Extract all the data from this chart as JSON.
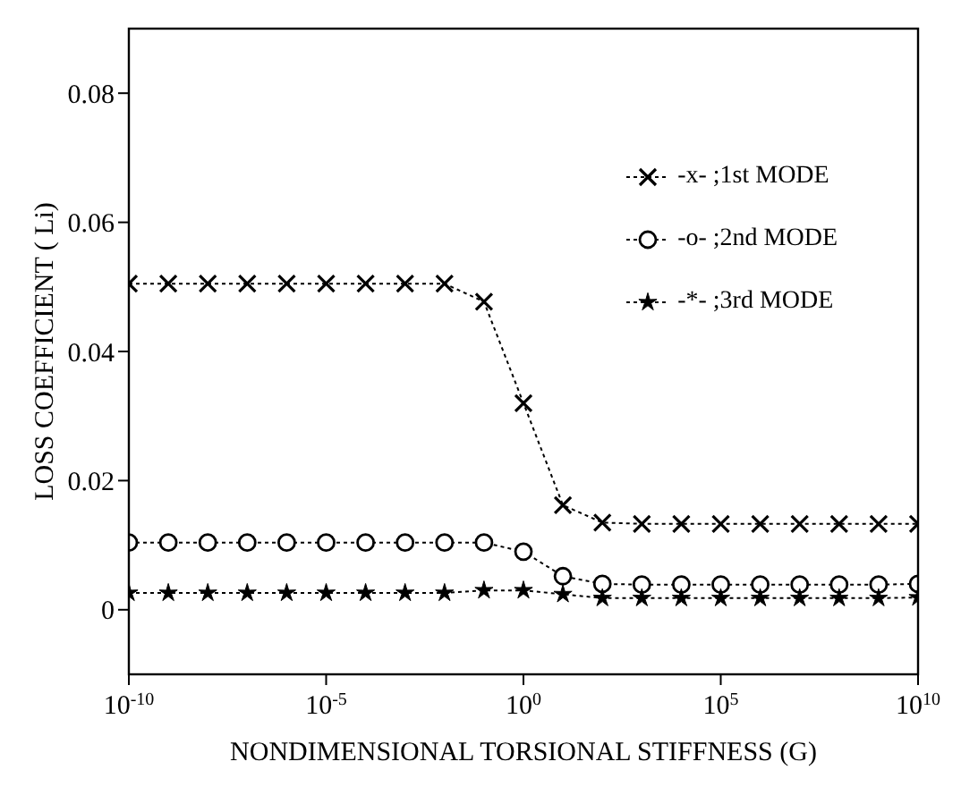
{
  "chart_data": {
    "type": "line",
    "xlabel": "NONDIMENSIONAL TORSIONAL STIFFNESS (G)",
    "ylabel": "LOSS COEFFICIENT ( Li)",
    "x": [
      1e-10,
      1e-09,
      1e-08,
      1e-07,
      1e-06,
      1e-05,
      0.0001,
      0.001,
      0.01,
      0.1,
      1,
      10,
      100,
      1000,
      10000,
      100000,
      1000000,
      10000000,
      100000000,
      1000000000,
      10000000000
    ],
    "series": [
      {
        "name": "-x- ;1st MODE",
        "color": "#000000",
        "marker": "cross",
        "values": [
          0.0505,
          0.0505,
          0.0505,
          0.0505,
          0.0505,
          0.0505,
          0.0505,
          0.0505,
          0.0505,
          0.0477,
          0.032,
          0.0162,
          0.0135,
          0.0133,
          0.0133,
          0.0133,
          0.0133,
          0.0133,
          0.0133,
          0.0133,
          0.0133
        ]
      },
      {
        "name": "-o- ;2nd MODE",
        "color": "#000000",
        "marker": "circle",
        "values": [
          0.0104,
          0.0104,
          0.0104,
          0.0104,
          0.0104,
          0.0104,
          0.0104,
          0.0104,
          0.0104,
          0.0104,
          0.009,
          0.0052,
          0.004,
          0.0039,
          0.0039,
          0.0039,
          0.0039,
          0.0039,
          0.0039,
          0.0039,
          0.004
        ]
      },
      {
        "name": "-*- ;3rd MODE",
        "color": "#000000",
        "marker": "star",
        "values": [
          0.0026,
          0.0026,
          0.0026,
          0.0026,
          0.0026,
          0.0026,
          0.0026,
          0.0026,
          0.0026,
          0.003,
          0.003,
          0.0024,
          0.0018,
          0.0018,
          0.0018,
          0.0018,
          0.0018,
          0.0018,
          0.0018,
          0.0018,
          0.0019
        ]
      }
    ],
    "log": "x",
    "xlim": [
      1e-10,
      10000000000
    ],
    "xticks": [
      {
        "value": 1e-10,
        "label": "10$^{-10}$"
      },
      {
        "value": 1e-05,
        "label": "10$^{-5}$"
      },
      {
        "value": 1,
        "label": "10$^{0}$"
      },
      {
        "value": 100000,
        "label": "10$^{5}$"
      },
      {
        "value": 10000000000,
        "label": "10$^{10}$"
      }
    ],
    "ylim": [
      -0.01,
      0.09
    ],
    "yticks": [
      0,
      0.02,
      0.04,
      0.06,
      0.08
    ],
    "grid": false,
    "legend": "top right",
    "line_style": "dotted"
  }
}
